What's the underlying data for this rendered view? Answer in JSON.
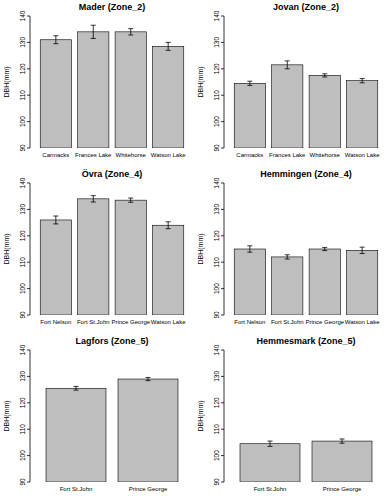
{
  "chart_data": [
    {
      "type": "bar",
      "title": "Mader (Zone_2)",
      "y_label": "DBH(mm)",
      "categories": [
        "Carmacks",
        "Frances Lake",
        "Whitehorse",
        "Watson Lake"
      ],
      "values": [
        131,
        134,
        134,
        128.5
      ],
      "errors": [
        1.5,
        2.5,
        1.2,
        1.5
      ],
      "color": "#bebebe",
      "ylim": [
        90,
        140
      ],
      "yticks": [
        90,
        100,
        110,
        120,
        130,
        140
      ]
    },
    {
      "type": "bar",
      "title": "Jovan (Zone_2)",
      "y_label": "DBH(mm)",
      "categories": [
        "Carmacks",
        "Frances Lake",
        "Whitehorse",
        "Watson Lake"
      ],
      "values": [
        114.5,
        121.5,
        117.5,
        115.5
      ],
      "errors": [
        0.8,
        1.5,
        0.6,
        0.8
      ],
      "color": "#bebebe",
      "ylim": [
        90,
        140
      ],
      "yticks": [
        90,
        100,
        110,
        120,
        130,
        140
      ]
    },
    {
      "type": "bar",
      "title": "Övra (Zone_4)",
      "y_label": "DBH(mm)",
      "categories": [
        "Fort Nelson",
        "Fort St.John",
        "Prince George",
        "Watson Lake"
      ],
      "values": [
        126,
        134,
        133.5,
        124
      ],
      "errors": [
        1.5,
        1.2,
        0.8,
        1.3
      ],
      "color": "#bebebe",
      "ylim": [
        90,
        140
      ],
      "yticks": [
        90,
        100,
        110,
        120,
        130,
        140
      ]
    },
    {
      "type": "bar",
      "title": "Hemmingen (Zone_4)",
      "y_label": "DBH(mm)",
      "categories": [
        "Fort Nelson",
        "Fort St.John",
        "Prince George",
        "Watson Lake"
      ],
      "values": [
        115,
        112,
        115,
        114.5
      ],
      "errors": [
        1.2,
        0.8,
        0.6,
        1.2
      ],
      "color": "#bebebe",
      "ylim": [
        90,
        140
      ],
      "yticks": [
        90,
        100,
        110,
        120,
        130,
        140
      ]
    },
    {
      "type": "bar",
      "title": "Lagfors (Zone_5)",
      "y_label": "DBH(mm)",
      "categories": [
        "Fort St.John",
        "Prince George"
      ],
      "values": [
        125.5,
        129
      ],
      "errors": [
        0.7,
        0.6
      ],
      "color": "#bebebe",
      "ylim": [
        90,
        140
      ],
      "yticks": [
        90,
        100,
        110,
        120,
        130,
        140
      ]
    },
    {
      "type": "bar",
      "title": "Hemmesmark (Zone_5)",
      "y_label": "DBH(mm)",
      "categories": [
        "Fort St.John",
        "Prince George"
      ],
      "values": [
        104.5,
        105.5
      ],
      "errors": [
        1,
        0.8
      ],
      "color": "#bebebe",
      "ylim": [
        90,
        140
      ],
      "yticks": [
        90,
        100,
        110,
        120,
        130,
        140
      ]
    }
  ]
}
